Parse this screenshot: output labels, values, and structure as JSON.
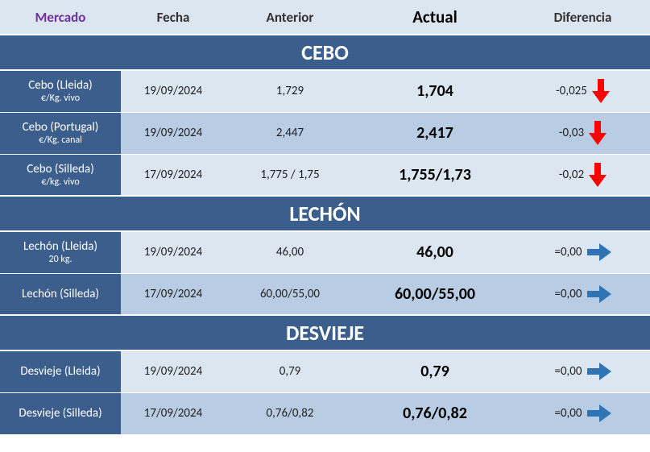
{
  "colors": {
    "header_bg": "#dce6f1",
    "section_bg": "#3b5e8c",
    "market_bg": "#3b5e8c",
    "row_light": "#dce6f1",
    "row_med": "#b8cce4",
    "text_dark": "#333333",
    "text_white": "#ffffff",
    "mercado_header": "#7030a0",
    "arrow_down": "#ff0000",
    "arrow_right": "#2f75b5"
  },
  "columns": {
    "mercado": "Mercado",
    "fecha": "Fecha",
    "anterior": "Anterior",
    "actual": "Actual",
    "diferencia": "Diferencia"
  },
  "sections": [
    {
      "title": "CEBO",
      "rows": [
        {
          "market": "Cebo (Lleida)",
          "sub": "€/Kg. vivo",
          "fecha": "19/09/2024",
          "anterior": "1,729",
          "actual": "1,704",
          "diff": "-0,025",
          "trend": "down",
          "shade": "light"
        },
        {
          "market": "Cebo (Portugal)",
          "sub": "€/Kg. canal",
          "fecha": "19/09/2024",
          "anterior": "2,447",
          "actual": "2,417",
          "diff": "-0,03",
          "trend": "down",
          "shade": "med"
        },
        {
          "market": "Cebo (Silleda)",
          "sub": "€/kg. vivo",
          "fecha": "17/09/2024",
          "anterior": "1,775 / 1,75",
          "actual": "1,755/1,73",
          "diff": "-0,02",
          "trend": "down",
          "shade": "light"
        }
      ]
    },
    {
      "title": "LECHÓN",
      "rows": [
        {
          "market": "Lechón (Lleida)",
          "sub": "20 kg.",
          "fecha": "19/09/2024",
          "anterior": "46,00",
          "actual": "46,00",
          "diff": "=0,00",
          "trend": "flat",
          "shade": "light"
        },
        {
          "market": "Lechón (Silleda)",
          "sub": "",
          "fecha": "17/09/2024",
          "anterior": "60,00/55,00",
          "actual": "60,00/55,00",
          "diff": "=0,00",
          "trend": "flat",
          "shade": "med"
        }
      ]
    },
    {
      "title": "DESVIEJE",
      "rows": [
        {
          "market": "Desvieje (Lleida)",
          "sub": "",
          "fecha": "19/09/2024",
          "anterior": "0,79",
          "actual": "0,79",
          "diff": "=0,00",
          "trend": "flat",
          "shade": "light"
        },
        {
          "market": "Desvieje (Silleda)",
          "sub": "",
          "fecha": "17/09/2024",
          "anterior": "0,76/0,82",
          "actual": "0,76/0,82",
          "diff": "=0,00",
          "trend": "flat",
          "shade": "med"
        }
      ]
    }
  ]
}
